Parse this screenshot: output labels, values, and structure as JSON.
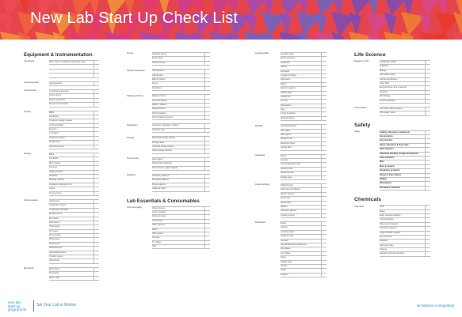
{
  "title": "New Lab Start Up Check List",
  "columns": [
    {
      "sections": [
        {
          "heading": "Equipment & Instrumentation",
          "blocks": [
            {
              "category": "Centrifuges",
              "rows": [
                "Micro, macro, micro/floor refrigerated, Ultra",
                "",
                "",
                ""
              ]
            },
            {
              "category": "Chromatography",
              "rows": [
                "Gas generators"
              ]
            },
            {
              "category": "Concentration",
              "rows": [
                "Centrifugal evaporators",
                "Freeze dryers",
                "Rotary evaporators",
                "Vacuum concentrators"
              ]
            },
            {
              "category": "Cooling",
              "rows": [
                "Baths",
                "Circulators",
                "Cryogenic storage / dewars",
                "Cryopreservation",
                "Freezers",
                "Ice makers",
                "Cooling incubators",
                "Refrigerators",
                "Ultra-low freezers"
              ]
            },
            {
              "category": "Heating",
              "rows": [
                "Baths",
                "Circulators",
                "Block heaters",
                "Furnaces",
                "Heating mantles",
                "Hotplates",
                "Humidity cabinets",
                "Incubators, shaking & CO2",
                "Ovens",
                "Thermocyclers"
              ]
            },
            {
              "category": "Instrumentation",
              "rows": [
                "Colorimeters",
                "Conductivity meters",
                "Conductivity standards",
                "Density meters",
                "DO meters",
                "Fluorimeters",
                "Hygrometers",
                "pH meters",
                "pH electrodes",
                "Photometers",
                "Polarimeters",
                "Refractometers",
                "Spectrophotometers",
                "Turbidity meters",
                "Viscometers"
              ]
            },
            {
              "category": "Microscopy",
              "rows": [
                "Microscopes",
                "Illuminators",
                "Slides / slips"
              ]
            }
          ]
        }
      ]
    },
    {
      "sections": [
        {
          "heading": "",
          "blocks": [
            {
              "category": "Pumps",
              "rows": [
                "Peristaltic pumps",
                "Pump tubing",
                "Vacuum pumps"
              ]
            },
            {
              "category": "Sample Preparation",
              "rows": [
                "Homogenisers",
                "Lab blenders",
                "Mills & grinders",
                "Sieves",
                "Sonicators"
              ]
            },
            {
              "category": "Shaking & Stirring",
              "rows": [
                "Magnetic stirrers",
                "Overhead stirrers",
                "Platform shakers",
                "Rotators/mixers",
                "Stirring bars/flea",
                "Vortex shakers & mixers"
              ]
            },
            {
              "category": "Sterilisation",
              "rows": [
                "Autoclaves, bleaching, steriliser",
                "Autoclave tape"
              ]
            },
            {
              "category": "Storage",
              "rows": [
                "Flammable storage cabinet",
                "Storage racks",
                "Corrosive storage cabinet",
                "Safety storage cabinets"
              ]
            },
            {
              "category": "Thermometry",
              "rows": [
                "Data loggers",
                "Melting point apparatus",
                "Thermometers, glass & digital"
              ]
            },
            {
              "category": "Weighing",
              "rows": [
                "Laboratory balances",
                "Microplate balances",
                "Pipette washers",
                "Ultrasonic baths"
              ]
            }
          ]
        },
        {
          "heading": "Lab Essentials & Consumables",
          "blocks": [
            {
              "category": "Chromatography",
              "rows": [
                "Chiral columns",
                "Column packing",
                "Fittings & tubing",
                "GC columns",
                "HPLC columns",
                "Filters",
                "SPE columns",
                "Syringes",
                "TLC plates",
                "Vials"
              ]
            }
          ]
        }
      ]
    },
    {
      "sections": [
        {
          "heading": "",
          "blocks": [
            {
              "category": "Lab Essentials",
              "rows": [
                "Autoclave bags",
                "Bench protectors",
                "Cleanroom",
                "Clamps",
                "Clip labels",
                "Cuvettes & holders",
                "Dispensers",
                "Dishes",
                "Racks & supports",
                "Sample bags",
                "Sealing film",
                "Stir bars",
                "Stopwatches",
                "Tape",
                "Tubing & supplies",
                "Weighing dishes"
              ]
            },
            {
              "category": "Filtration",
              "rows": [
                "Centrifugal devices",
                "Filter paper",
                "Filter papers",
                "Filtration units",
                "Membrane filters",
                "Syringe filters"
              ]
            },
            {
              "category": "Glassware",
              "rows": [
                "Bottles",
                "Cuvettes",
                "General laboratory ware",
                "Jacketed ware",
                "Measuring ware",
                "Storage ware"
              ]
            },
            {
              "category": "Liquid Handling",
              "rows": [
                "Digital burettes",
                "Dispensers and diluters",
                "Pasteur pipettes",
                "Pipette tips",
                "Pipette fillers",
                "Pipettes",
                "Volumetric pipettes",
                "Transfer pipettes"
              ]
            },
            {
              "category": "Plasticware",
              "rows": [
                "Bottles",
                "Carboys",
                "Centrifuge tubes",
                "Cryogenic vials",
                "Cuvettes",
                "General laboratory plasticware",
                "Microplates",
                "Petri dishes",
                "Racks",
                "Sample bags",
                "Scoops",
                "Sterile",
                "Stoppers"
              ]
            }
          ]
        }
      ]
    },
    {
      "sections": [
        {
          "heading": "Life Science",
          "blocks": [
            {
              "category": "Reagents & Kits",
              "rows": [
                "Amplification (PCR)",
                "Antibodies",
                "Blotting",
                "Cell culture media",
                "Cell line identification",
                "DNA / RNA",
                "Electrophoresis, gels & reagents",
                "Histology",
                "Microbiology",
                "Protein purification"
              ]
            },
            {
              "category": "Consumables",
              "rows": [
                "Cell culture dishes & plates",
                "PCR plates / tubes"
              ]
            }
          ]
        },
        {
          "heading": "Safety",
          "blocks": [
            {
              "category": "Safety",
              "rows": [
                {
                  "t": "Clothing, laboratory & cleanroom",
                  "b": true
                },
                {
                  "t": "Eye protection",
                  "b": true
                },
                {
                  "t": "Ear protection",
                  "b": true
                },
                {
                  "t": "Gloves, laboratory & disposable",
                  "b": true
                },
                {
                  "t": "Hand cleansers",
                  "b": true
                },
                {
                  "t": "Hazardous handling, storage and disposal",
                  "b": true
                },
                {
                  "t": "Fume extraction",
                  "b": true
                },
                {
                  "t": "Mats",
                  "b": true
                },
                {
                  "t": "Mops & cleaners",
                  "b": true
                },
                {
                  "t": "Respiratory protection",
                  "b": true
                },
                {
                  "t": "Shower & drain stations",
                  "b": true
                },
                {
                  "t": "Spillage",
                  "b": true
                },
                {
                  "t": "Wipes/wipers",
                  "b": true
                },
                {
                  "t": "Workwear & outerwear",
                  "b": true
                }
              ]
            }
          ]
        },
        {
          "heading": "Chemicals",
          "blocks": [
            {
              "category": "Chemicals",
              "rows": [
                "Acids",
                "Bases",
                "Buffer standard solutions",
                "Chromatography",
                "High purity inorganics",
                "Karl Fisher reagents",
                "Organometallic reagents",
                "Pure elements",
                "Reagents",
                "Salts and oxides",
                "Solvents",
                "Standard volumetric solutions"
              ]
            }
          ]
        }
      ]
    }
  ],
  "footer": {
    "logo_lines": [
      "new lab",
      "start-up",
      "programme"
    ],
    "tagline": "Set Your Lab in Motion",
    "url": "uk.fishersci.com/gethelp"
  }
}
